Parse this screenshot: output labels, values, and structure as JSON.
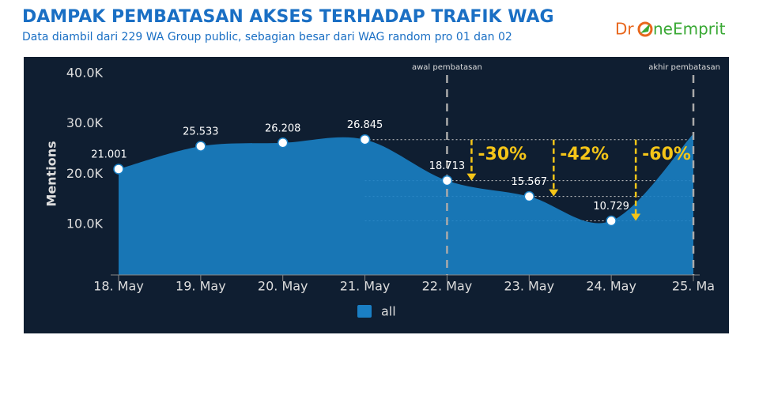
{
  "header": {
    "title": "DAMPAK PEMBATASAN AKSES TERHADAP TRAFIK WAG",
    "subtitle": "Data diambil dari 229 WA Group public, sebagian besar dari WAG random pro 01 dan 02",
    "logo": [
      "Dr",
      "neEmprit"
    ]
  },
  "chart_data": {
    "type": "area",
    "categories": [
      "18. May",
      "19. May",
      "20. May",
      "21. May",
      "22. May",
      "23. May",
      "24. May",
      "25. Ma"
    ],
    "series": [
      {
        "name": "all",
        "color": "#1a7fc4",
        "values": [
          21001,
          25533,
          26208,
          26845,
          18713,
          15567,
          10729,
          28000
        ],
        "value_labels": [
          "21.001",
          "25.533",
          "26.208",
          "26.845",
          "18.713",
          "15.567",
          "10.729",
          null
        ]
      }
    ],
    "y_label": "Mentions",
    "ylim": [
      0,
      42000
    ],
    "yticks": [
      {
        "value": 10000,
        "label": "10.0K"
      },
      {
        "value": 20000,
        "label": "20.0K"
      },
      {
        "value": 30000,
        "label": "30.0K"
      },
      {
        "value": 40000,
        "label": "40.0K"
      }
    ],
    "grid": false,
    "annotations": [
      "awal pembatasan",
      "akhir pembatasan"
    ],
    "changes": [
      "-30%",
      "-42%",
      "-60%"
    ]
  }
}
